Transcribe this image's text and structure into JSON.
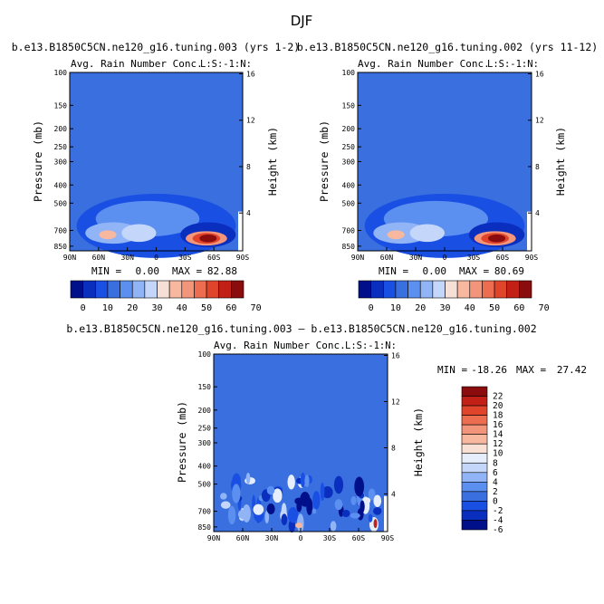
{
  "figure_title": "DJF",
  "chart_data": [
    {
      "type": "heatmap",
      "title": "b.e13.B1850C5CN.ne120_g16.tuning.003 (yrs 1-2)",
      "variable": "Avg. Rain Number Conc.",
      "corner_label": "L:S:-1:N:",
      "ylabel": "Pressure (mb)",
      "ylabel_right": "Height (km)",
      "x_ticks": [
        "90N",
        "60N",
        "30N",
        "0",
        "30S",
        "60S",
        "90S"
      ],
      "y_ticks": [
        "100",
        "150",
        "200",
        "250",
        "300",
        "400",
        "500",
        "700",
        "850"
      ],
      "y_ticks_right": [
        "16",
        "12",
        "8",
        "4"
      ],
      "stats": {
        "min_label": "MIN =",
        "min": "0.00",
        "max_label": "MAX =",
        "max": "82.88"
      },
      "colorbar": {
        "orientation": "horizontal",
        "labels": [
          "0",
          "10",
          "20",
          "30",
          "40",
          "50",
          "60",
          "70"
        ]
      }
    },
    {
      "type": "heatmap",
      "title": "b.e13.B1850C5CN.ne120_g16.tuning.002 (yrs 11-12)",
      "variable": "Avg. Rain Number Conc.",
      "corner_label": "L:S:-1:N:",
      "ylabel": "Pressure (mb)",
      "ylabel_right": "Height (km)",
      "x_ticks": [
        "90N",
        "60N",
        "30N",
        "0",
        "30S",
        "60S",
        "90S"
      ],
      "y_ticks": [
        "100",
        "150",
        "200",
        "250",
        "300",
        "400",
        "500",
        "700",
        "850"
      ],
      "y_ticks_right": [
        "16",
        "12",
        "8",
        "4"
      ],
      "stats": {
        "min_label": "MIN =",
        "min": "0.00",
        "max_label": "MAX =",
        "max": "80.69"
      },
      "colorbar": {
        "orientation": "horizontal",
        "labels": [
          "0",
          "10",
          "20",
          "30",
          "40",
          "50",
          "60",
          "70"
        ]
      }
    },
    {
      "type": "heatmap",
      "title": "b.e13.B1850C5CN.ne120_g16.tuning.003 – b.e13.B1850C5CN.ne120_g16.tuning.002",
      "variable": "Avg. Rain Number Conc.",
      "corner_label": "L:S:-1:N:",
      "ylabel": "Pressure (mb)",
      "ylabel_right": "Height (km)",
      "x_ticks": [
        "90N",
        "60N",
        "30N",
        "0",
        "30S",
        "60S",
        "90S"
      ],
      "y_ticks": [
        "100",
        "150",
        "200",
        "250",
        "300",
        "400",
        "500",
        "700",
        "850"
      ],
      "y_ticks_right": [
        "16",
        "12",
        "8",
        "4"
      ],
      "stats": {
        "min_label": "MIN =",
        "min": "-18.26",
        "max_label": "MAX =",
        "max": "27.42"
      },
      "colorbar": {
        "orientation": "vertical",
        "labels": [
          "22",
          "20",
          "18",
          "16",
          "14",
          "12",
          "10",
          "8",
          "6",
          "4",
          "2",
          "0",
          "-2",
          "-4",
          "-6"
        ]
      }
    }
  ],
  "colors": {
    "background_blue": "#3a6fe0",
    "scale_abs": [
      "#00108a",
      "#0a2fbf",
      "#1a4fe3",
      "#3a6fe0",
      "#5b8ff0",
      "#90b4f5",
      "#c4d6fa",
      "#f6e0d6",
      "#f8b8a0",
      "#f3957a",
      "#ec6d50",
      "#e0452c",
      "#c22016",
      "#8a0c0c"
    ],
    "scale_diff": [
      "#00108a",
      "#0a2fbf",
      "#1a4fe3",
      "#3a6fe0",
      "#5b8ff0",
      "#90b4f5",
      "#c4d6fa",
      "#e6eefc",
      "#f8e0d4",
      "#f8b8a0",
      "#f3957a",
      "#ec6d50",
      "#e0452c",
      "#c22016",
      "#8a0c0c"
    ]
  }
}
